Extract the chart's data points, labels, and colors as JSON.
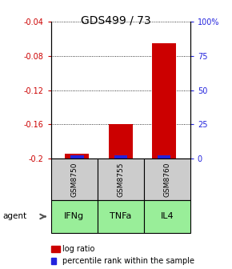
{
  "title": "GDS499 / 73",
  "samples": [
    "GSM8750",
    "GSM8755",
    "GSM8760"
  ],
  "agents": [
    "IFNg",
    "TNFa",
    "IL4"
  ],
  "log_ratios": [
    -0.194,
    -0.16,
    -0.065
  ],
  "percentile_ranks": [
    0.08,
    0.06,
    0.54
  ],
  "ylim_left": [
    -0.2,
    -0.04
  ],
  "ylim_right": [
    0,
    100
  ],
  "left_ticks": [
    -0.2,
    -0.16,
    -0.12,
    -0.08,
    -0.04
  ],
  "right_tick_labels": [
    "0",
    "25",
    "50",
    "75",
    "100%"
  ],
  "right_tick_vals": [
    0,
    25,
    50,
    75,
    100
  ],
  "bar_color_red": "#cc0000",
  "bar_color_blue": "#2222dd",
  "sample_box_color": "#cccccc",
  "agent_box_color": "#99ee99",
  "left_tick_color": "#cc0000",
  "right_tick_color": "#2222dd",
  "bar_width": 0.55
}
